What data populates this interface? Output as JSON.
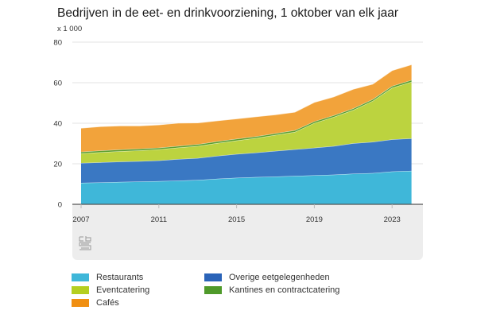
{
  "chart_data": {
    "type": "area",
    "stacked": true,
    "title": "Bedrijven in de eet- en drinkvoorziening, 1 oktober van elk jaar",
    "unit_label": "x 1 000",
    "xlabel": "",
    "ylabel": "",
    "ylim": [
      0,
      80
    ],
    "yticks": [
      0,
      20,
      40,
      60,
      80
    ],
    "xticks": [
      2007,
      2011,
      2015,
      2019,
      2023
    ],
    "grid": true,
    "legend_position": "bottom",
    "x": [
      2007,
      2008,
      2009,
      2010,
      2011,
      2012,
      2013,
      2014,
      2015,
      2016,
      2017,
      2018,
      2019,
      2020,
      2021,
      2022,
      2023,
      2024
    ],
    "series": [
      {
        "name": "Restaurants",
        "color": "#3fb7d9",
        "values": [
          10.6,
          10.8,
          11.0,
          11.2,
          11.4,
          11.7,
          12.0,
          12.6,
          13.1,
          13.4,
          13.7,
          14.0,
          14.3,
          14.6,
          15.1,
          15.4,
          16.2,
          16.5
        ]
      },
      {
        "name": "Overige eetgelegenheden",
        "color": "#3a78c3",
        "values": [
          9.8,
          9.9,
          10.0,
          10.1,
          10.2,
          10.6,
          10.8,
          11.3,
          11.7,
          12.1,
          12.6,
          13.1,
          13.6,
          14.1,
          15.0,
          15.4,
          15.8,
          16.0
        ]
      },
      {
        "name": "Eventcatering",
        "color": "#bcd33f",
        "values": [
          4.7,
          5.0,
          5.2,
          5.3,
          5.5,
          5.7,
          6.0,
          6.3,
          6.7,
          7.2,
          7.9,
          8.6,
          12.2,
          14.4,
          16.4,
          20.2,
          25.5,
          27.9
        ]
      },
      {
        "name": "Kantines en contractcatering",
        "color": "#5a9e2f",
        "values": [
          0.8,
          0.8,
          0.8,
          0.8,
          0.8,
          0.8,
          0.8,
          0.8,
          0.8,
          0.8,
          0.8,
          0.8,
          0.8,
          0.8,
          0.8,
          0.8,
          0.8,
          0.9
        ]
      },
      {
        "name": "Cafés",
        "color": "#f2a33b",
        "values": [
          11.7,
          11.9,
          11.7,
          11.3,
          11.3,
          11.3,
          10.6,
          10.2,
          9.9,
          9.7,
          9.2,
          9.0,
          9.4,
          9.1,
          9.5,
          7.5,
          7.7,
          7.6
        ]
      }
    ]
  },
  "legend": {
    "items": [
      {
        "label": "Restaurants",
        "color": "#3fb7d9"
      },
      {
        "label": "Overige eetgelegenheden",
        "color": "#2a63b8"
      },
      {
        "label": "Eventcatering",
        "color": "#b5cf20"
      },
      {
        "label": "Kantines en contractcatering",
        "color": "#4f9a2a"
      },
      {
        "label": "Cafés",
        "color": "#f08f12"
      }
    ]
  },
  "logo": {
    "icon": "cbs-logo-icon"
  }
}
